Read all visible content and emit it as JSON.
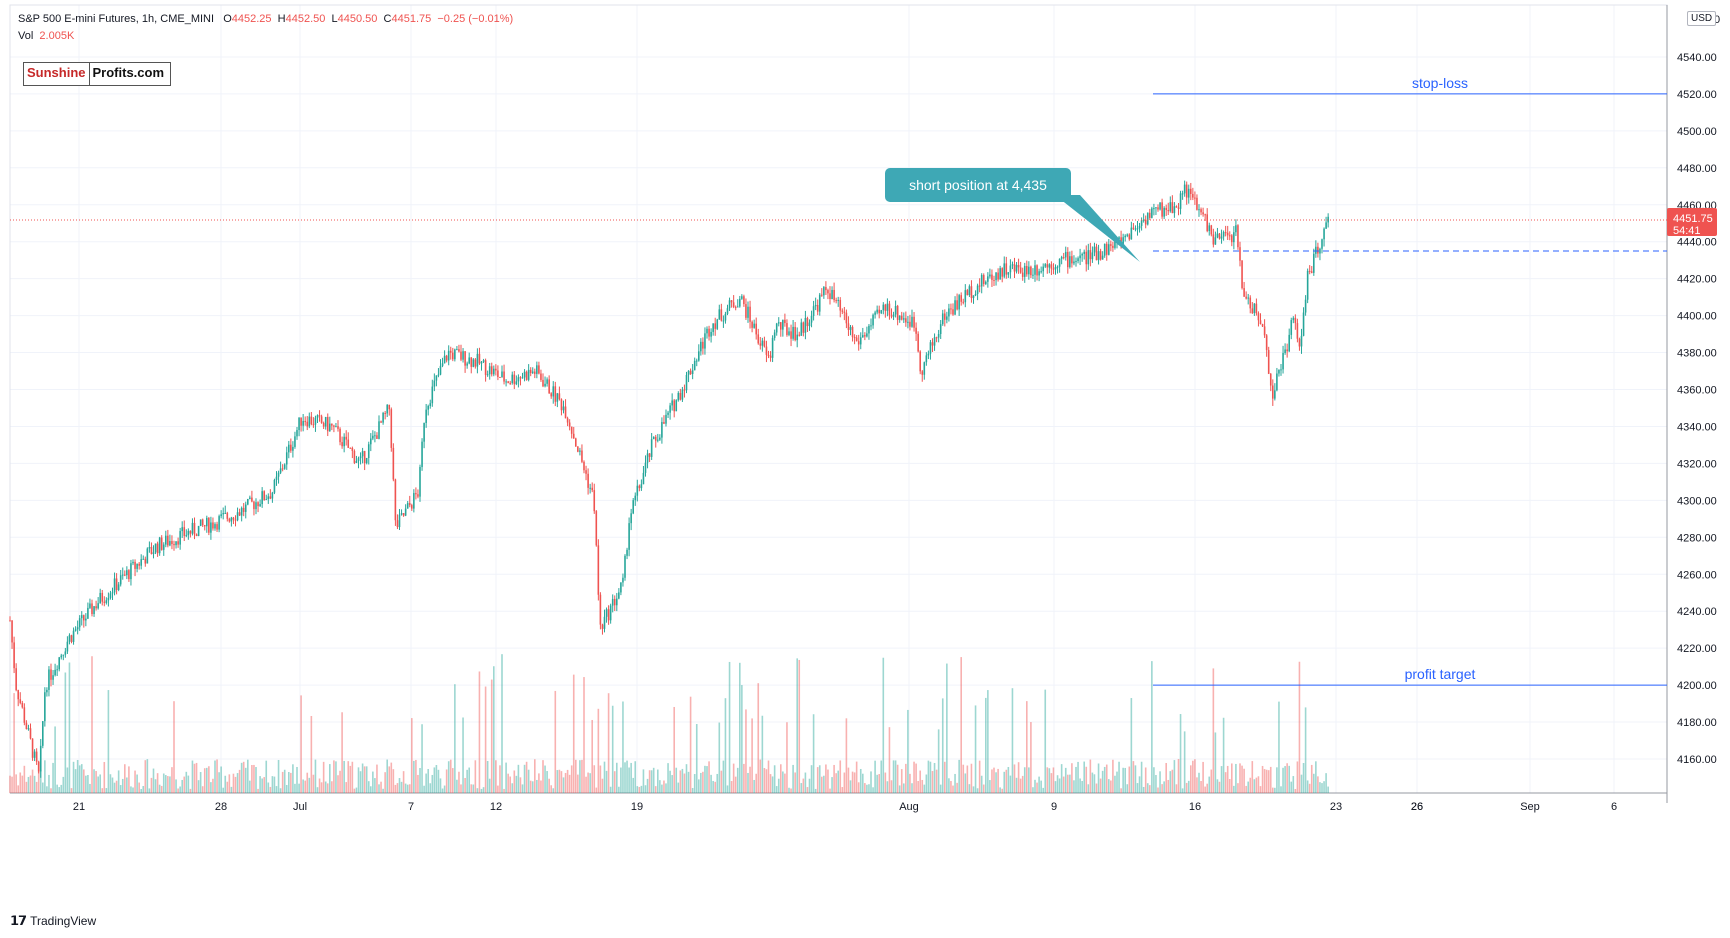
{
  "header": {
    "title": "S&P 500 E-mini Futures, 1h, CME_MINI",
    "open_label": "O",
    "open": "4452.25",
    "high_label": "H",
    "high": "4452.50",
    "low_label": "L",
    "low": "4450.50",
    "close_label": "C",
    "close": "4451.75",
    "change": "−0.25 (−0.01%)",
    "vol_label": "Vol",
    "vol": "2.005K"
  },
  "logo": {
    "part1": "Sunshine",
    "part2": "Profits.com"
  },
  "footer": {
    "brand": "TradingView"
  },
  "currency": "USD",
  "price_tag": {
    "price": "4451.75",
    "countdown": "54:41"
  },
  "annotations": {
    "stop_loss": {
      "label": "stop-loss",
      "price": 4520
    },
    "profit_target": {
      "label": "profit target",
      "price": 4200
    },
    "entry": {
      "label": "short position at 4,435",
      "price": 4435
    }
  },
  "colors": {
    "up": "#26a69a",
    "down": "#ef5350",
    "line": "#2962ff",
    "callout": "#3ea8b5",
    "grid": "#f0f3fa"
  },
  "chart_data": {
    "type": "candlestick",
    "title": "S&P 500 E-mini Futures, 1h, CME_MINI",
    "y_axis": {
      "ticks": [
        4160,
        4180,
        4200,
        4220,
        4240,
        4260,
        4280,
        4300,
        4320,
        4340,
        4360,
        4380,
        4400,
        4420,
        4440,
        4460,
        4480,
        4500,
        4520,
        4540
      ],
      "top_partial_label": "0"
    },
    "x_axis": {
      "ticks": [
        "21",
        "28",
        "Jul",
        "7",
        "12",
        "19",
        "26",
        "Aug",
        "9",
        "16",
        "23",
        "26",
        "Sep",
        "6"
      ]
    },
    "series_path": [
      [
        "Jun 18",
        4235
      ],
      [
        "Jun 18",
        4200
      ],
      [
        "Jun 21",
        4150
      ],
      [
        "Jun 21",
        4200
      ],
      [
        "Jun 22",
        4225
      ],
      [
        "Jun 23",
        4245
      ],
      [
        "Jun 24",
        4260
      ],
      [
        "Jun 25",
        4275
      ],
      [
        "Jun 28",
        4282
      ],
      [
        "Jun 29",
        4288
      ],
      [
        "Jun 30",
        4295
      ],
      [
        "Jul 1",
        4305
      ],
      [
        "Jul 2",
        4345
      ],
      [
        "Jul 6",
        4340
      ],
      [
        "Jul 7",
        4320
      ],
      [
        "Jul 8",
        4350
      ],
      [
        "Jul 8",
        4285
      ],
      [
        "Jul 9",
        4305
      ],
      [
        "Jul 9",
        4350
      ],
      [
        "Jul 12",
        4380
      ],
      [
        "Jul 13",
        4375
      ],
      [
        "Jul 14",
        4365
      ],
      [
        "Jul 15",
        4370
      ],
      [
        "Jul 16",
        4350
      ],
      [
        "Jul 16",
        4340
      ],
      [
        "Jul 19",
        4300
      ],
      [
        "Jul 19",
        4230
      ],
      [
        "Jul 20",
        4255
      ],
      [
        "Jul 20",
        4290
      ],
      [
        "Jul 21",
        4330
      ],
      [
        "Jul 22",
        4360
      ],
      [
        "Jul 23",
        4395
      ],
      [
        "Jul 26",
        4410
      ],
      [
        "Jul 27",
        4375
      ],
      [
        "Jul 27",
        4395
      ],
      [
        "Jul 28",
        4390
      ],
      [
        "Jul 29",
        4415
      ],
      [
        "Jul 30",
        4385
      ],
      [
        "Aug 2",
        4405
      ],
      [
        "Aug 3",
        4395
      ],
      [
        "Aug 3",
        4370
      ],
      [
        "Aug 4",
        4400
      ],
      [
        "Aug 5",
        4415
      ],
      [
        "Aug 6",
        4425
      ],
      [
        "Aug 9",
        4425
      ],
      [
        "Aug 10",
        4430
      ],
      [
        "Aug 11",
        4432
      ],
      [
        "Aug 12",
        4440
      ],
      [
        "Aug 13",
        4455
      ],
      [
        "Aug 16",
        4460
      ],
      [
        "Aug 16",
        4470
      ],
      [
        "Aug 17",
        4450
      ],
      [
        "Aug 17",
        4440
      ],
      [
        "Aug 18",
        4445
      ],
      [
        "Aug 18",
        4415
      ],
      [
        "Aug 19",
        4390
      ],
      [
        "Aug 19",
        4355
      ],
      [
        "Aug 20",
        4400
      ],
      [
        "Aug 20",
        4380
      ],
      [
        "Aug 20",
        4420
      ],
      [
        "Aug 23",
        4445
      ],
      [
        "Aug 23",
        4451.75
      ]
    ],
    "last_price": 4451.75
  }
}
